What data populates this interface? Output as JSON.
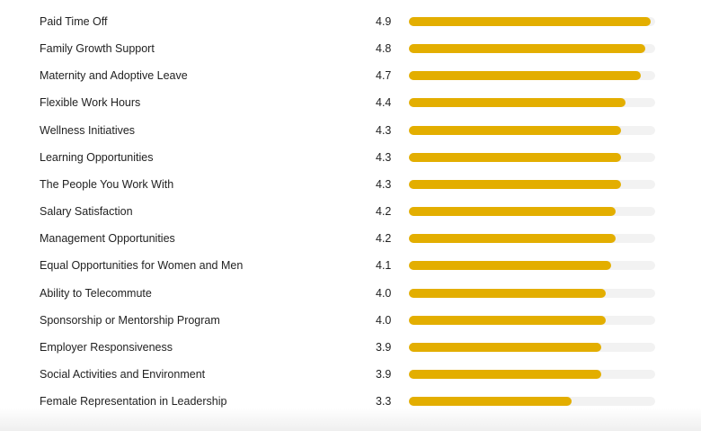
{
  "chart_data": {
    "type": "bar",
    "orientation": "horizontal",
    "title": "",
    "xlabel": "",
    "ylabel": "",
    "xlim": [
      0,
      5
    ],
    "grid": false,
    "bar_color": "#e3ae00",
    "track_color": "#f2f2f2",
    "categories": [
      "Paid Time Off",
      "Family Growth Support",
      "Maternity and Adoptive Leave",
      "Flexible Work Hours",
      "Wellness Initiatives",
      "Learning Opportunities",
      "The People You Work With",
      "Salary Satisfaction",
      "Management Opportunities",
      "Equal Opportunities for Women and Men",
      "Ability to Telecommute",
      "Sponsorship or Mentorship Program",
      "Employer Responsiveness",
      "Social Activities and Environment",
      "Female Representation in Leadership"
    ],
    "values": [
      4.9,
      4.8,
      4.7,
      4.4,
      4.3,
      4.3,
      4.3,
      4.2,
      4.2,
      4.1,
      4.0,
      4.0,
      3.9,
      3.9,
      3.3
    ],
    "value_labels": [
      "4.9",
      "4.8",
      "4.7",
      "4.4",
      "4.3",
      "4.3",
      "4.3",
      "4.2",
      "4.2",
      "4.1",
      "4.0",
      "4.0",
      "3.9",
      "3.9",
      "3.3"
    ]
  }
}
